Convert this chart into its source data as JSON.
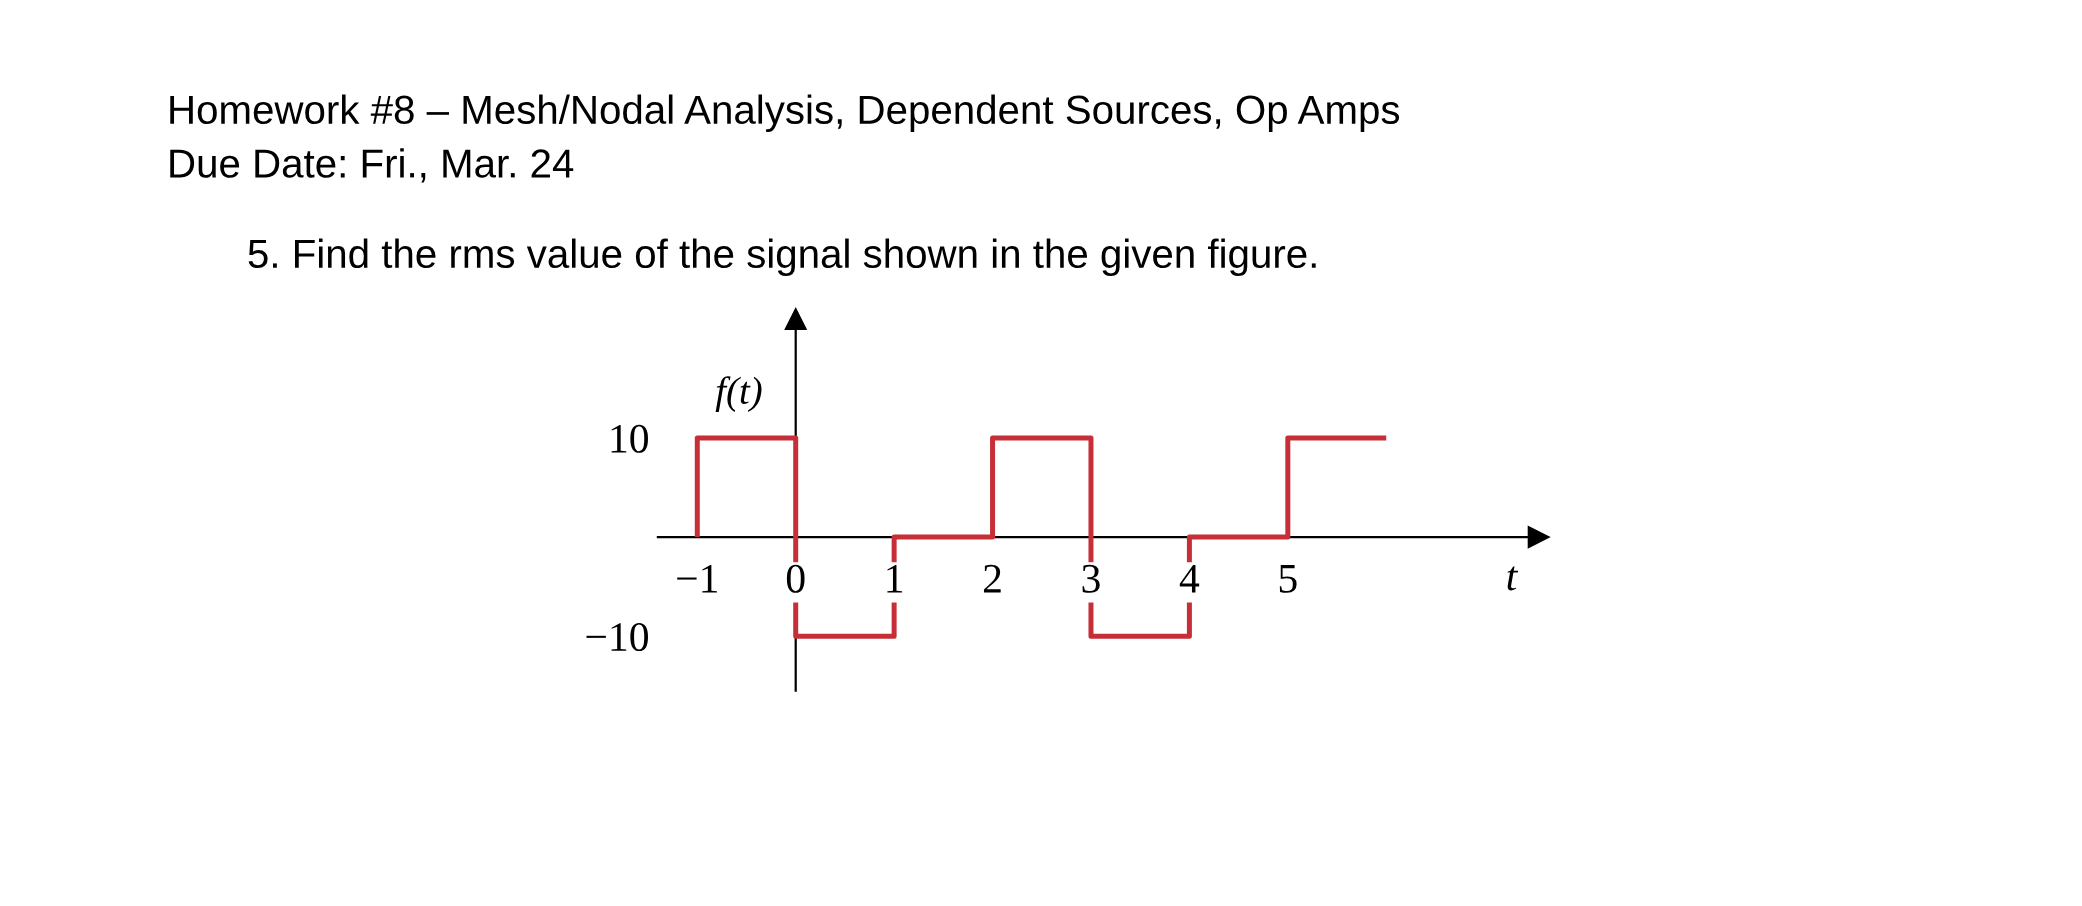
{
  "chart_data": {
    "type": "step",
    "title": "Homework #8 – Mesh/Nodal Analysis, Dependent Sources, Op Amps",
    "subtitle": "Due Date: Fri., Mar. 24",
    "annotations": [
      "5. Find the rms value of the signal shown in the given figure."
    ],
    "xlabel": "t",
    "ylabel": "f(t)",
    "x": [
      -1,
      -1,
      0,
      1,
      2,
      3,
      4,
      5,
      6
    ],
    "values": [
      0,
      10,
      -10,
      0,
      10,
      -10,
      0,
      10,
      10
    ],
    "color": "#c62f37",
    "xlim": [
      -1.4,
      7.55
    ],
    "ylim": [
      -15.5,
      22
    ],
    "xticks": [
      -1,
      0,
      1,
      2,
      3,
      4,
      5
    ],
    "yticks": [
      -10,
      10
    ]
  }
}
